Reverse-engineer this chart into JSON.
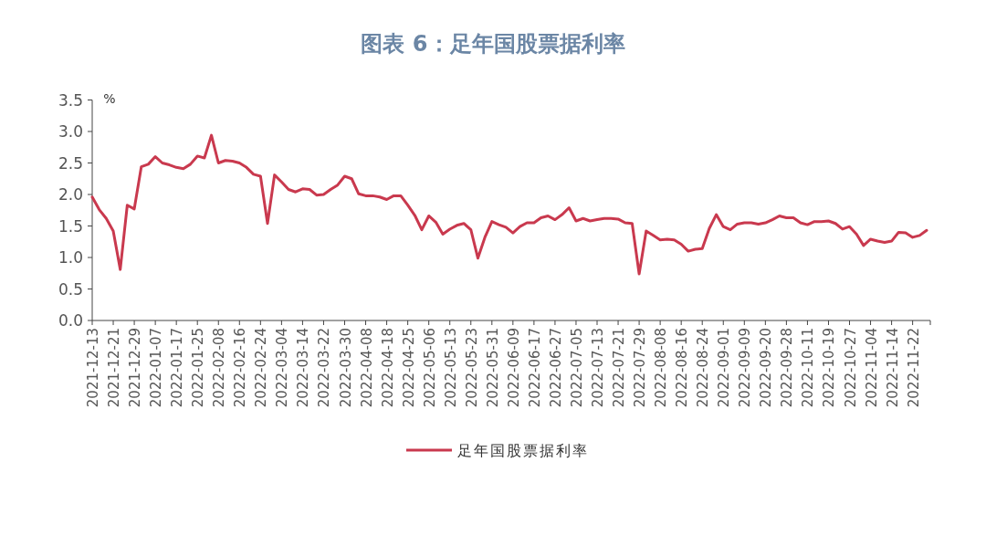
{
  "chart_data": {
    "type": "line",
    "title": "图表 6：足年国股票据利率",
    "ylabel": "%",
    "categories": [
      "2021-12-13",
      null,
      null,
      "2021-12-21",
      null,
      null,
      "2021-12-29",
      null,
      null,
      "2022-01-07",
      null,
      null,
      "2022-01-17",
      null,
      null,
      "2022-01-25",
      null,
      null,
      "2022-02-08",
      null,
      null,
      "2022-02-16",
      null,
      null,
      "2022-02-24",
      null,
      null,
      "2022-03-04",
      null,
      null,
      "2022-03-14",
      null,
      null,
      "2022-03-22",
      null,
      null,
      "2022-03-30",
      null,
      null,
      "2022-04-08",
      null,
      null,
      "2022-04-18",
      null,
      null,
      "2022-04-25",
      null,
      null,
      "2022-05-06",
      null,
      null,
      "2022-05-13",
      null,
      null,
      "2022-05-23",
      null,
      null,
      "2022-05-31",
      null,
      null,
      "2022-06-09",
      null,
      null,
      "2022-06-17",
      null,
      null,
      "2022-06-27",
      null,
      null,
      "2022-07-05",
      null,
      null,
      "2022-07-13",
      null,
      null,
      "2022-07-21",
      null,
      null,
      "2022-07-29",
      null,
      null,
      "2022-08-08",
      null,
      null,
      "2022-08-16",
      null,
      null,
      "2022-08-24",
      null,
      null,
      "2022-09-01",
      null,
      null,
      "2022-09-09",
      null,
      null,
      "2022-09-20",
      null,
      null,
      "2022-09-28",
      null,
      null,
      "2022-10-11",
      null,
      null,
      "2022-10-19",
      null,
      null,
      "2022-10-27",
      null,
      null,
      "2022-11-04",
      null,
      null,
      "2022-11-14",
      null,
      null,
      "2022-11-22",
      null,
      null
    ],
    "series": [
      {
        "name": "足年国股票据利率",
        "color": "#c9394e",
        "values": [
          1.96,
          1.76,
          1.62,
          1.42,
          0.81,
          1.83,
          1.77,
          2.44,
          2.48,
          2.6,
          2.5,
          2.47,
          2.43,
          2.41,
          2.48,
          2.61,
          2.58,
          2.94,
          2.5,
          2.54,
          2.53,
          2.5,
          2.43,
          2.32,
          2.29,
          1.54,
          2.31,
          2.2,
          2.08,
          2.04,
          2.09,
          2.08,
          1.99,
          2.0,
          2.08,
          2.15,
          2.29,
          2.25,
          2.01,
          1.98,
          1.98,
          1.96,
          1.92,
          1.98,
          1.98,
          1.83,
          1.67,
          1.44,
          1.66,
          1.56,
          1.37,
          1.45,
          1.51,
          1.54,
          1.44,
          0.99,
          1.32,
          1.57,
          1.52,
          1.48,
          1.39,
          1.49,
          1.55,
          1.55,
          1.63,
          1.66,
          1.6,
          1.68,
          1.79,
          1.58,
          1.62,
          1.58,
          1.6,
          1.62,
          1.62,
          1.61,
          1.55,
          1.54,
          0.74,
          1.42,
          1.35,
          1.28,
          1.29,
          1.28,
          1.21,
          1.1,
          1.13,
          1.14,
          1.46,
          1.68,
          1.49,
          1.44,
          1.53,
          1.55,
          1.55,
          1.53,
          1.55,
          1.6,
          1.66,
          1.63,
          1.63,
          1.55,
          1.52,
          1.57,
          1.57,
          1.58,
          1.54,
          1.45,
          1.49,
          1.37,
          1.19,
          1.29,
          1.26,
          1.24,
          1.26,
          1.4,
          1.39,
          1.32,
          1.35,
          1.43
        ]
      }
    ],
    "ylim": [
      0,
      3.5
    ],
    "yticks": [
      {
        "value": 0,
        "label": "0.0"
      },
      {
        "value": 0.5,
        "label": "0.5"
      },
      {
        "value": 1,
        "label": "1.0"
      },
      {
        "value": 1.5,
        "label": "1.5"
      },
      {
        "value": 2,
        "label": "2.0"
      },
      {
        "value": 2.5,
        "label": "2.5"
      },
      {
        "value": 3,
        "label": "3.0"
      },
      {
        "value": 3.5,
        "label": "3.5"
      }
    ],
    "legend": "bottom"
  }
}
